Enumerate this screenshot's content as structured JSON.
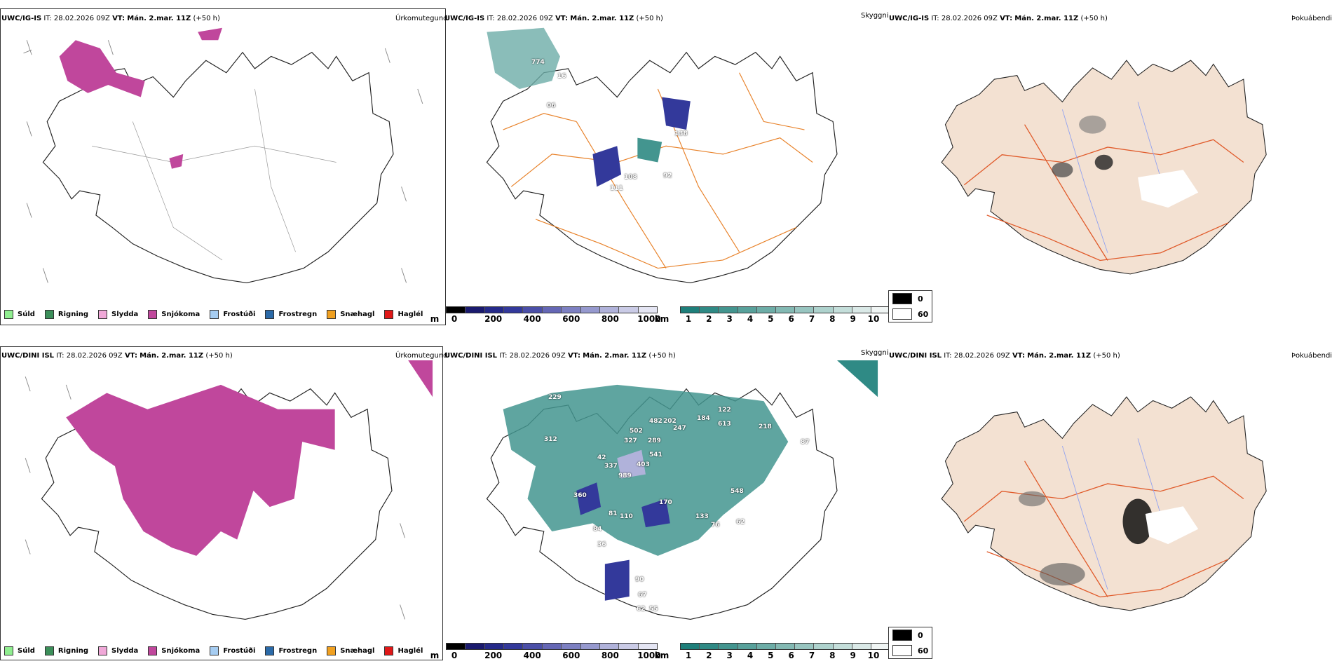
{
  "panels": {
    "top_left": {
      "model": "UWC/IG-IS",
      "it_label": "IT:",
      "it": "28.02.2026 09Z",
      "vt_label": "VT:",
      "vt": "Mán. 2.mar. 11Z",
      "lead": "(+50 h)",
      "product": "Úrkomutegund"
    },
    "top_mid": {
      "model": "UWC/IG-IS",
      "it_label": "IT:",
      "it": "28.02.2026 09Z",
      "vt_label": "VT:",
      "vt": "Mán. 2.mar. 11Z",
      "lead": "(+50 h)",
      "product": "Skyggni"
    },
    "top_right": {
      "model": "UWC/IG-IS",
      "it_label": "IT:",
      "it": "28.02.2026 09Z",
      "vt_label": "VT:",
      "vt": "Mán. 2.mar. 11Z",
      "lead": "(+50 h)",
      "product": "Þokuábendi"
    },
    "bot_left": {
      "model": "UWC/DINI ISL",
      "it_label": "IT:",
      "it": "28.02.2026 09Z",
      "vt_label": "VT:",
      "vt": "Mán. 2.mar. 11Z",
      "lead": "(+50 h)",
      "product": "Úrkomutegund"
    },
    "bot_mid": {
      "model": "UWC/DINI ISL",
      "it_label": "IT:",
      "it": "28.02.2026 09Z",
      "vt_label": "VT:",
      "vt": "Mán. 2.mar. 11Z",
      "lead": "(+50 h)",
      "product": "Skyggni"
    },
    "bot_right": {
      "model": "UWC/DINI ISL",
      "it_label": "IT:",
      "it": "28.02.2026 09Z",
      "vt_label": "VT:",
      "vt": "Mán. 2.mar. 11Z",
      "lead": "(+50 h)",
      "product": "Þokuábendi"
    }
  },
  "ptype_legend": [
    {
      "label": "Súld",
      "color": "#90ee90"
    },
    {
      "label": "Rigning",
      "color": "#3c8f5a"
    },
    {
      "label": "Slydda",
      "color": "#f0a8d8"
    },
    {
      "label": "Snjókoma",
      "color": "#c0479c"
    },
    {
      "label": "Frostúði",
      "color": "#a6cdf2"
    },
    {
      "label": "Frostregn",
      "color": "#2b6aa8"
    },
    {
      "label": "Snæhagl",
      "color": "#f0a020"
    },
    {
      "label": "Haglél",
      "color": "#e01818"
    }
  ],
  "ceiling_bar": {
    "unit": "m",
    "ticks": [
      "0",
      "200",
      "400",
      "600",
      "800",
      "1000"
    ],
    "colors": [
      "#000000",
      "#1a1a6e",
      "#252a8a",
      "#33399b",
      "#4b4fa8",
      "#6567b5",
      "#7d80c2",
      "#9699ce",
      "#b0b2da",
      "#cacbe6",
      "#e4e5f3"
    ]
  },
  "vis_bar": {
    "unit": "km",
    "ticks": [
      "1",
      "2",
      "3",
      "4",
      "5",
      "6",
      "7",
      "8",
      "9",
      "10"
    ],
    "colors": [
      "#1e7f7a",
      "#2f8a85",
      "#43958f",
      "#58a19b",
      "#6dada7",
      "#83b9b3",
      "#98c5c0",
      "#aed2cd",
      "#c4deda",
      "#dae9e7",
      "#f0f5f4"
    ]
  },
  "haze_legend": [
    {
      "label": "0",
      "color": "#000000"
    },
    {
      "label": "60",
      "color": "#ffffff"
    }
  ],
  "labels_top": [
    "774",
    "16",
    "06",
    "138",
    "108",
    "92",
    "111"
  ],
  "labels_bot": [
    "229",
    "312",
    "502",
    "327",
    "289",
    "482",
    "202",
    "247",
    "184",
    "122",
    "613",
    "218",
    "42",
    "541",
    "337",
    "403",
    "989",
    "360",
    "170",
    "81",
    "110",
    "84",
    "36",
    "133",
    "76",
    "62",
    "548",
    "87",
    "90",
    "67",
    "62",
    "55"
  ]
}
